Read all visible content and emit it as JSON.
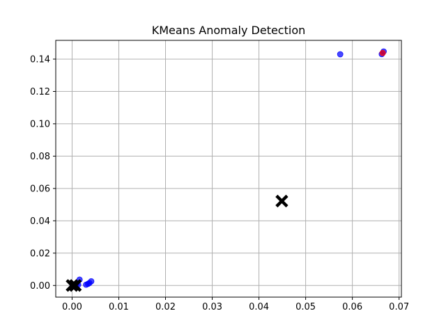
{
  "chart_data": {
    "type": "scatter",
    "title": "KMeans Anomaly Detection",
    "xlabel": "",
    "ylabel": "",
    "xlim": [
      -0.0035,
      0.0705
    ],
    "ylim": [
      -0.0072,
      0.1516
    ],
    "xticks": [
      0.0,
      0.01,
      0.02,
      0.03,
      0.04,
      0.05,
      0.06,
      0.07
    ],
    "xtick_labels": [
      "0.00",
      "0.01",
      "0.02",
      "0.03",
      "0.04",
      "0.05",
      "0.06",
      "0.07"
    ],
    "yticks": [
      0.0,
      0.02,
      0.04,
      0.06,
      0.08,
      0.1,
      0.12,
      0.14
    ],
    "ytick_labels": [
      "0.00",
      "0.02",
      "0.04",
      "0.06",
      "0.08",
      "0.10",
      "0.12",
      "0.14"
    ],
    "grid": true,
    "series": [
      {
        "marker": "circle",
        "color": "#0000ff",
        "points": [
          [
            0.0001,
            0.0002
          ],
          [
            0.0004,
            0.0006
          ],
          [
            0.0007,
            0.0003
          ],
          [
            0.001,
            0.001
          ],
          [
            0.0013,
            0.0005
          ],
          [
            0.0016,
            0.0036
          ],
          [
            0.003,
            0.0005
          ],
          [
            0.0034,
            0.001
          ],
          [
            0.0037,
            0.0015
          ],
          [
            0.0041,
            0.0026
          ],
          [
            0.0574,
            0.143
          ],
          [
            0.0663,
            0.1431
          ],
          [
            0.0667,
            0.1447
          ]
        ]
      },
      {
        "marker": "circle",
        "color": "#ff0000",
        "points": [
          [
            0.0665,
            0.1438
          ]
        ]
      },
      {
        "marker": "x",
        "color": "#000000",
        "points": [
          [
            0.0,
            0.0
          ],
          [
            0.0007,
            0.0
          ],
          [
            0.0449,
            0.0522
          ]
        ]
      }
    ]
  }
}
